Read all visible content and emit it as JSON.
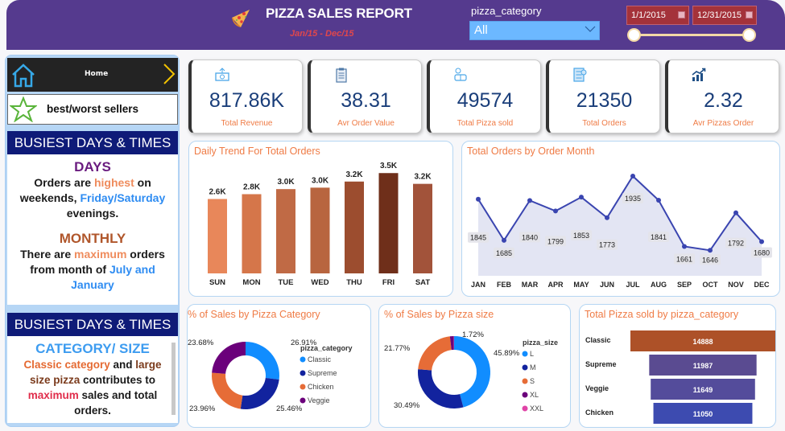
{
  "header": {
    "title": "PIZZA SALES REPORT",
    "subtitle": "Jan/15  -  Dec/15",
    "slicer_label": "pizza_category",
    "slicer_value": "All",
    "date_start": "1/1/2015",
    "date_end": "12/31/2015",
    "range_fraction": [
      0,
      1
    ],
    "colors": {
      "header_bg": "#553a8e",
      "date_bg": "#a4323a",
      "dropdown_bg": "#6cb8ff"
    }
  },
  "sidebar": {
    "nav": [
      {
        "label": "Home",
        "icon": "home-icon"
      },
      {
        "label": "best/worst sellers",
        "icon": "star-icon"
      }
    ],
    "section1": {
      "heading": "BUSIEST DAYS & TIMES",
      "days_title": "DAYS",
      "days_text": [
        "Orders are ",
        "highest",
        " on weekends, ",
        "Friday/Saturday",
        " evenings."
      ],
      "monthly_title": "MONTHLY",
      "monthly_text": [
        "There are ",
        "maximum",
        " orders from month of ",
        "July and January"
      ]
    },
    "section2": {
      "heading": "BUSIEST DAYS & TIMES",
      "title": "CATEGORY/ SIZE",
      "text": [
        "Classic category",
        " and ",
        "large size pizza",
        " contributes to  ",
        "maximum",
        " sales and total orders."
      ]
    }
  },
  "kpis": [
    {
      "icon": "money-icon",
      "value": "817.86K",
      "label": "Total Revenue"
    },
    {
      "icon": "clipboard-icon",
      "value": "38.31",
      "label": "Avr Order Value"
    },
    {
      "icon": "delivery-icon",
      "value": "49574",
      "label": "Total Pizza sold"
    },
    {
      "icon": "checklist-icon",
      "value": "21350",
      "label": "Total Orders"
    },
    {
      "icon": "growth-chart-icon",
      "value": "2.32",
      "label": "Avr Pizzas Order"
    }
  ],
  "chart_data": [
    {
      "type": "bar",
      "title": "Daily Trend For Total Orders",
      "categories": [
        "SUN",
        "MON",
        "TUE",
        "WED",
        "THU",
        "FRI",
        "SAT"
      ],
      "values": [
        2624,
        2794,
        2973,
        3024,
        3239,
        3538,
        3158
      ],
      "data_labels": [
        "2.6K",
        "2.8K",
        "3.0K",
        "3.0K",
        "3.2K",
        "3.5K",
        "3.2K"
      ],
      "colors": [
        "#e8875a",
        "#d5764a",
        "#c06a45",
        "#b8653f",
        "#9c4d2f",
        "#6f2f1a",
        "#a2533a"
      ],
      "xlabel": "",
      "ylabel": "",
      "ylim": [
        0,
        3800
      ],
      "grid": false
    },
    {
      "type": "area",
      "title": "Total Orders by Order Month",
      "categories": [
        "JAN",
        "FEB",
        "MAR",
        "APR",
        "MAY",
        "JUN",
        "JUL",
        "AUG",
        "SEP",
        "OCT",
        "NOV",
        "DEC"
      ],
      "values": [
        1845,
        1685,
        1840,
        1799,
        1853,
        1773,
        1935,
        1841,
        1661,
        1646,
        1792,
        1680
      ],
      "line_color": "#3a45b0",
      "fill_color": "#e3e5f3",
      "ylim": [
        1600,
        1960
      ],
      "grid": false
    },
    {
      "type": "pie",
      "title": "% of Sales by Pizza Category",
      "legend_title": "pizza_category",
      "legend_position": "right",
      "labels": [
        "Classic",
        "Supreme",
        "Chicken",
        "Veggie"
      ],
      "values": [
        26.91,
        25.46,
        23.96,
        23.68
      ],
      "value_labels": [
        "26.91%",
        "25.46%",
        "23.96%",
        "23.68%"
      ],
      "colors": [
        "#118dff",
        "#12239e",
        "#e66c37",
        "#6b007b"
      ]
    },
    {
      "type": "pie",
      "title": "% of Sales by Pizza size",
      "legend_title": "pizza_size",
      "legend_position": "right",
      "labels": [
        "L",
        "M",
        "S",
        "XL",
        "XXL"
      ],
      "values": [
        45.89,
        30.49,
        21.77,
        1.72,
        0.12
      ],
      "value_labels": [
        "45.89%",
        "30.49%",
        "21.77%",
        "1.72%",
        ""
      ],
      "colors": [
        "#118dff",
        "#12239e",
        "#e66c37",
        "#6b007b",
        "#e044a7"
      ]
    },
    {
      "type": "bar",
      "subtype": "funnel",
      "title": "Total Pizza sold by pizza_category",
      "categories": [
        "Classic",
        "Supreme",
        "Veggie",
        "Chicken"
      ],
      "values": [
        14888,
        11987,
        11649,
        11050
      ],
      "colors": [
        "#ad5128",
        "#5a4b91",
        "#544c9b",
        "#3d4bb0"
      ]
    }
  ]
}
